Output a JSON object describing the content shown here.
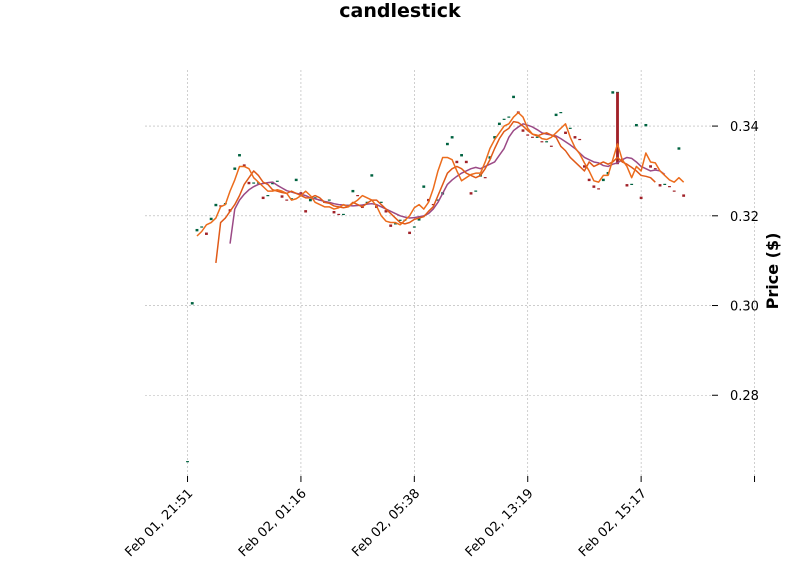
{
  "chart_data": {
    "type": "candlestick",
    "title": "candlestick",
    "ylabel": "Price ($)",
    "xlabel": "",
    "ylim": [
      0.262,
      0.3525
    ],
    "y_ticks": [
      0.28,
      0.3,
      0.32,
      0.34
    ],
    "y_tick_labels": [
      "0.28",
      "0.30",
      "0.32",
      "0.34"
    ],
    "x_range": [
      -9,
      111
    ],
    "x_ticks": [
      0,
      24,
      48,
      72,
      96,
      120
    ],
    "x_tick_labels": [
      "Feb 01, 21:51",
      "Feb 02, 01:16",
      "Feb 02, 05:38",
      "Feb 02, 13:19",
      "Feb 02, 15:17",
      ""
    ],
    "grid": true,
    "colors": {
      "up": "#006340",
      "down": "#a02128",
      "ma_fast": "#ec6c1c",
      "ma_mid": "#e05a18",
      "ma_slow": "#9b4a86",
      "grid": "#b0b0b0"
    },
    "close": [
      0.2652,
      0.3005,
      0.3168,
      0.3175,
      0.316,
      0.3193,
      0.3224,
      0.3222,
      0.3227,
      0.3212,
      0.3305,
      0.3335,
      0.3312,
      0.3273,
      0.3273,
      0.3273,
      0.324,
      0.3245,
      0.3273,
      0.3277,
      0.3243,
      0.3235,
      0.3238,
      0.328,
      0.325,
      0.321,
      0.3235,
      0.324,
      0.3235,
      0.323,
      0.3235,
      0.3208,
      0.3203,
      0.3203,
      0.3222,
      0.3255,
      0.3245,
      0.322,
      0.323,
      0.329,
      0.322,
      0.323,
      0.321,
      0.3178,
      0.3182,
      0.319,
      0.319,
      0.3162,
      0.3175,
      0.3192,
      0.3265,
      0.3235,
      0.3225,
      0.3235,
      0.325,
      0.336,
      0.3375,
      0.332,
      0.3335,
      0.332,
      0.325,
      0.3255,
      0.329,
      0.3285,
      0.333,
      0.3375,
      0.3405,
      0.3415,
      0.342,
      0.3465,
      0.343,
      0.339,
      0.338,
      0.3375,
      0.3375,
      0.3365,
      0.3365,
      0.3355,
      0.3425,
      0.343,
      0.3385,
      0.3395,
      0.3375,
      0.337,
      0.331,
      0.328,
      0.3265,
      0.326,
      0.328,
      0.3295,
      0.3475,
      0.3475,
      0.3325,
      0.3268,
      0.327,
      0.3402,
      0.324,
      0.3402,
      0.331,
      0.3305,
      0.3268,
      0.327,
      0.3265,
      0.3255,
      0.335,
      0.3245
    ],
    "wick": {
      "index": 91,
      "high": 0.3475,
      "low": 0.3315
    },
    "ma_fast_start": 2,
    "ma_fast": [
      0.3155,
      0.3165,
      0.318,
      0.3185,
      0.3195,
      0.322,
      0.3225,
      0.3255,
      0.328,
      0.331,
      0.331,
      0.3305,
      0.3285,
      0.3275,
      0.3265,
      0.3255,
      0.3255,
      0.3258,
      0.3255,
      0.325,
      0.3235,
      0.3238,
      0.3245,
      0.3255,
      0.3245,
      0.323,
      0.3225,
      0.322,
      0.322,
      0.3215,
      0.3218,
      0.3225,
      0.322,
      0.3228,
      0.3235,
      0.3245,
      0.324,
      0.3235,
      0.3222,
      0.32,
      0.3188,
      0.3185,
      0.3185,
      0.318,
      0.319,
      0.32,
      0.3218,
      0.3225,
      0.3215,
      0.323,
      0.326,
      0.33,
      0.333,
      0.333,
      0.3325,
      0.33,
      0.3278,
      0.3285,
      0.3292,
      0.3295,
      0.3295,
      0.332,
      0.335,
      0.337,
      0.3385,
      0.34,
      0.3405,
      0.342,
      0.343,
      0.342,
      0.3395,
      0.3382,
      0.338,
      0.3372,
      0.337,
      0.3375,
      0.3385,
      0.3395,
      0.3405,
      0.3375,
      0.3352,
      0.3338,
      0.3318,
      0.33,
      0.3278,
      0.3275,
      0.329,
      0.329,
      0.3325,
      0.336,
      0.3325,
      0.331,
      0.3285,
      0.331,
      0.33,
      0.334,
      0.332,
      0.3318,
      0.33,
      0.329,
      0.328,
      0.3275,
      0.3285,
      0.3275
    ],
    "ma_mid_start": 6,
    "ma_mid": [
      0.3095,
      0.3185,
      0.3195,
      0.321,
      0.3225,
      0.3245,
      0.327,
      0.3285,
      0.33,
      0.329,
      0.3275,
      0.327,
      0.3258,
      0.3255,
      0.3252,
      0.325,
      0.3255,
      0.325,
      0.3245,
      0.324,
      0.324,
      0.3245,
      0.324,
      0.323,
      0.3228,
      0.3222,
      0.322,
      0.3218,
      0.322,
      0.323,
      0.3225,
      0.322,
      0.3228,
      0.3235,
      0.3235,
      0.3225,
      0.3215,
      0.3205,
      0.3195,
      0.3185,
      0.3182,
      0.3185,
      0.3192,
      0.3195,
      0.3198,
      0.321,
      0.322,
      0.3245,
      0.327,
      0.3295,
      0.3305,
      0.331,
      0.3305,
      0.3295,
      0.329,
      0.3285,
      0.329,
      0.3305,
      0.3325,
      0.335,
      0.3372,
      0.3388,
      0.3395,
      0.341,
      0.3408,
      0.34,
      0.339,
      0.3382,
      0.3378,
      0.3382,
      0.3385,
      0.338,
      0.3375,
      0.3355,
      0.3345,
      0.333,
      0.332,
      0.331,
      0.33,
      0.332,
      0.331,
      0.3315,
      0.332,
      0.3315,
      0.332,
      0.333,
      0.332,
      0.3315,
      0.3308,
      0.33,
      0.329,
      0.3288,
      0.3285,
      0.3275
    ],
    "ma_slow_start": 9,
    "ma_slow": [
      0.3138,
      0.3215,
      0.3235,
      0.3248,
      0.3258,
      0.3265,
      0.327,
      0.3272,
      0.3274,
      0.3275,
      0.3268,
      0.3262,
      0.3256,
      0.3253,
      0.325,
      0.3248,
      0.3245,
      0.324,
      0.3238,
      0.3235,
      0.3232,
      0.323,
      0.3227,
      0.3225,
      0.3224,
      0.3223,
      0.3222,
      0.3223,
      0.3224,
      0.3226,
      0.3227,
      0.3225,
      0.322,
      0.3215,
      0.321,
      0.3205,
      0.32,
      0.3197,
      0.3195,
      0.3196,
      0.3198,
      0.32,
      0.3205,
      0.3215,
      0.323,
      0.325,
      0.327,
      0.328,
      0.3288,
      0.3295,
      0.33,
      0.3305,
      0.3308,
      0.3305,
      0.331,
      0.3315,
      0.332,
      0.3335,
      0.335,
      0.3375,
      0.339,
      0.3398,
      0.3405,
      0.3402,
      0.3398,
      0.3392,
      0.3385,
      0.3382,
      0.338,
      0.3378,
      0.3372,
      0.3365,
      0.3358,
      0.335,
      0.334,
      0.333,
      0.3325,
      0.332,
      0.3318,
      0.3312,
      0.331,
      0.3315,
      0.3318,
      0.3325,
      0.333,
      0.3328,
      0.332,
      0.331,
      0.3305,
      0.33,
      0.3302,
      0.33,
      0.3292
    ]
  }
}
